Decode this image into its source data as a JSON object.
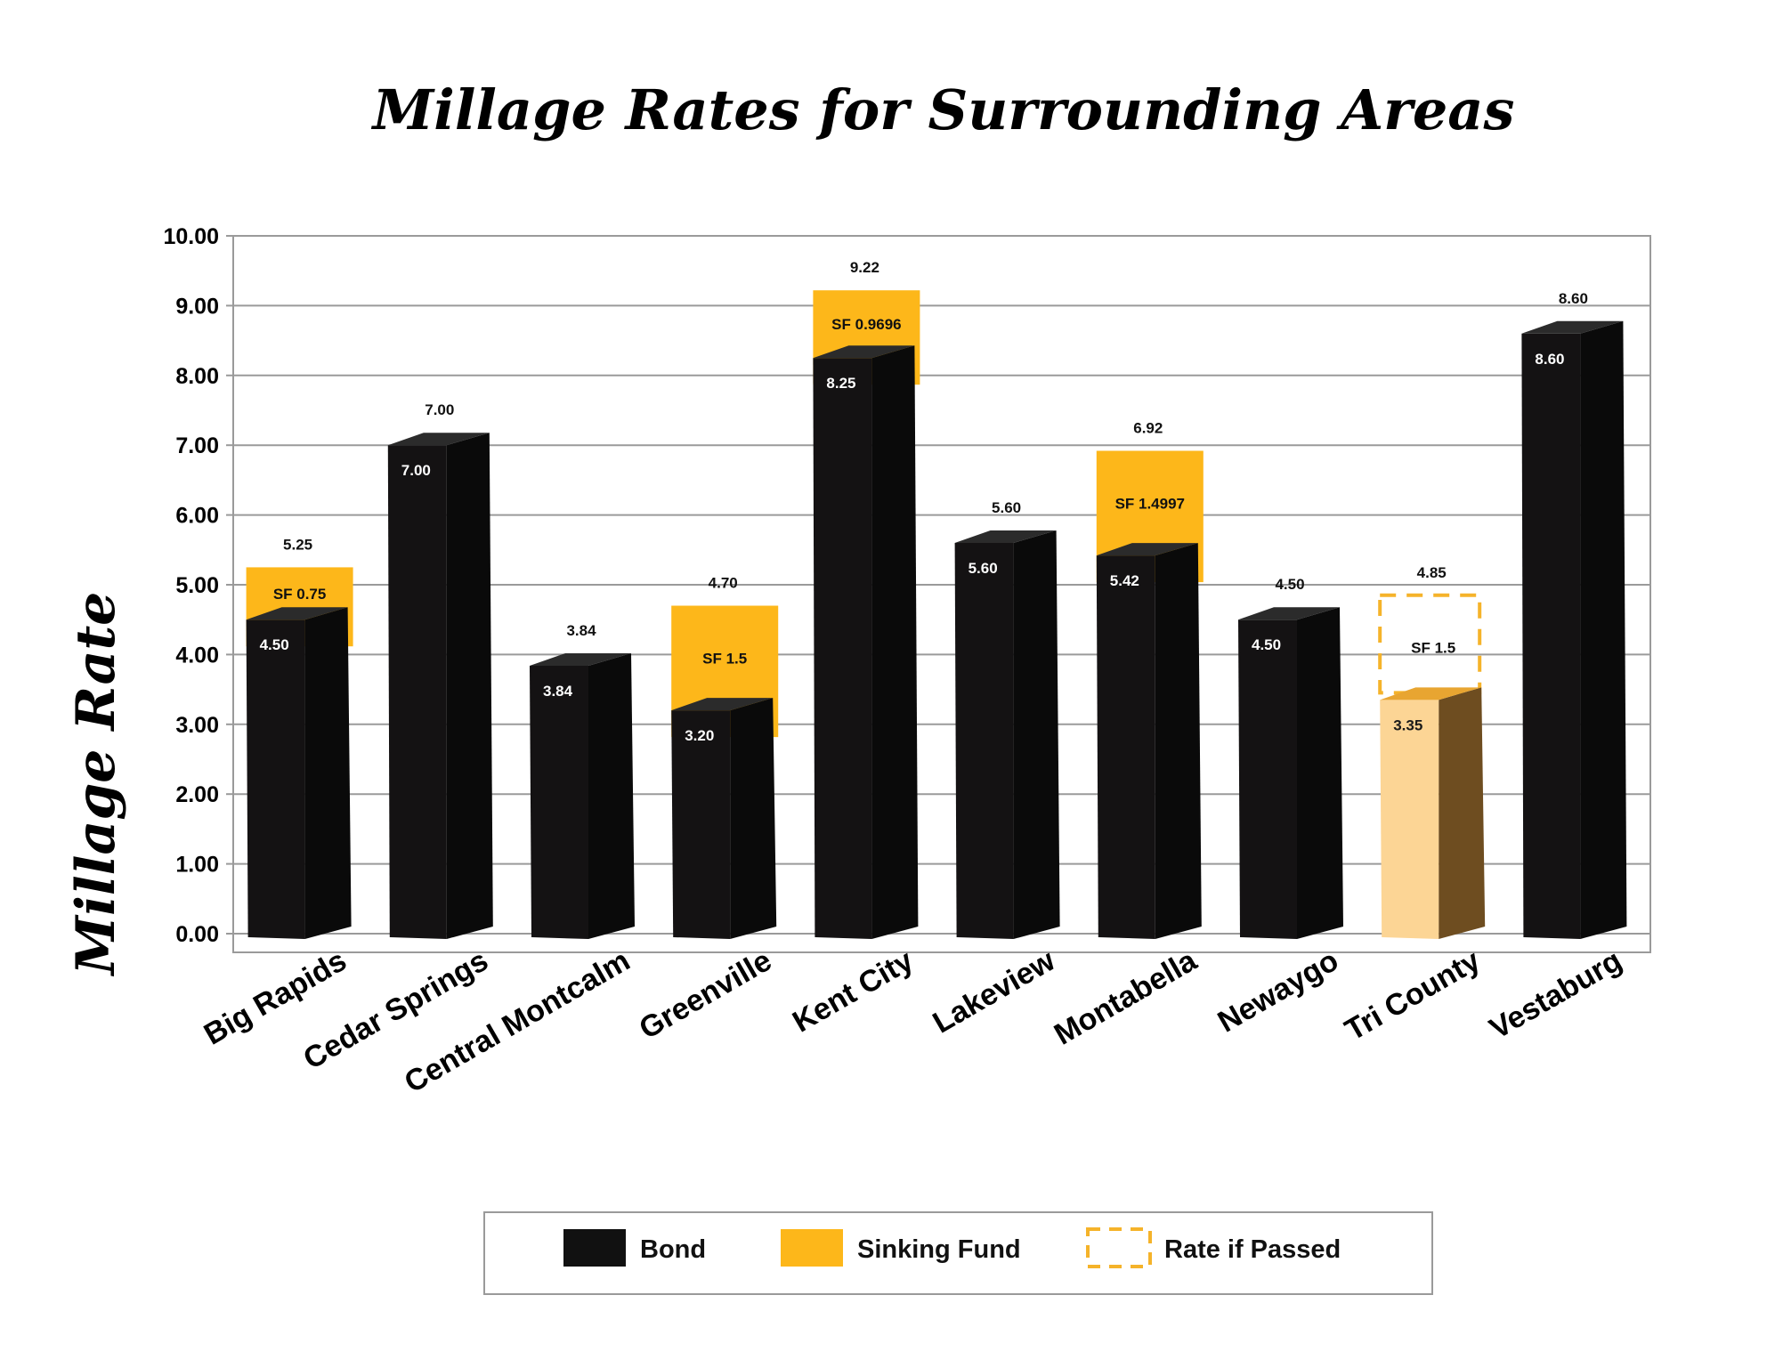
{
  "chart_data": {
    "type": "bar",
    "title": "Millage Rates for Surrounding Areas",
    "ylabel": "Millage Rate",
    "xlabel": "",
    "ylim": [
      0,
      10
    ],
    "yticks": [
      "0.00",
      "1.00",
      "2.00",
      "3.00",
      "4.00",
      "5.00",
      "6.00",
      "7.00",
      "8.00",
      "9.00",
      "10.00"
    ],
    "grid": true,
    "categories": [
      "Big Rapids",
      "Cedar Springs",
      "Central Montcalm",
      "Greenville",
      "Kent City",
      "Lakeview",
      "Montabella",
      "Newaygo",
      "Tri County",
      "Vestaburg"
    ],
    "series": [
      {
        "name": "Bond",
        "values": [
          4.5,
          7.0,
          3.84,
          3.2,
          8.25,
          5.6,
          5.42,
          4.5,
          3.35,
          8.6
        ]
      },
      {
        "name": "Sinking Fund",
        "values": [
          0.75,
          0,
          0,
          1.5,
          0.9696,
          0,
          1.4997,
          0,
          1.5,
          0
        ]
      }
    ],
    "bond_labels": [
      "4.50",
      "7.00",
      "3.84",
      "3.20",
      "8.25",
      "5.60",
      "5.42",
      "4.50",
      "3.35",
      "8.60"
    ],
    "sf_labels": [
      "SF 0.75",
      "",
      "",
      "SF 1.5",
      "SF 0.9696",
      "",
      "SF 1.4997",
      "",
      "SF 1.5",
      ""
    ],
    "total_labels": [
      "5.25",
      "7.00",
      "3.84",
      "4.70",
      "9.22",
      "5.60",
      "6.92",
      "4.50",
      "4.85",
      "8.60"
    ],
    "proposed_category": "Tri County",
    "legend": {
      "placement": "bottom",
      "items": [
        {
          "label": "Bond",
          "style": "solid",
          "color": "#111111"
        },
        {
          "label": "Sinking Fund",
          "style": "solid",
          "color": "#FDB71A"
        },
        {
          "label": "Rate if Passed",
          "style": "dashed",
          "color": "#F5B32A"
        }
      ]
    },
    "colors": {
      "bond": "#141213",
      "sinking_fund": "#FDB71A",
      "proposed_front": "#FCD595",
      "proposed_side": "#6E4D20",
      "proposed_top": "#E8A531",
      "dashed": "#F5B32A"
    }
  }
}
